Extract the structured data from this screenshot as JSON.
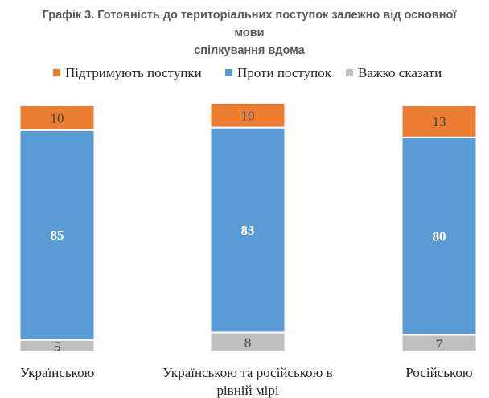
{
  "chart_data": {
    "type": "bar",
    "stacked": true,
    "title_line1": "Графік 3. Готовність до територіальних поступок залежно від основної мови",
    "title_line2": "спілкування вдома",
    "legend_position": "top",
    "categories": [
      [
        "Українською"
      ],
      [
        "Українською та російською в",
        "рівній мірі"
      ],
      [
        "Російською"
      ]
    ],
    "series": [
      {
        "name": "Важко сказати",
        "color": "#BFBFBF",
        "values": [
          5,
          8,
          7
        ],
        "label_color": "#404040",
        "bold": false
      },
      {
        "name": "Проти поступок",
        "color": "#5B9BD5",
        "values": [
          85,
          83,
          80
        ],
        "label_color": "#FFFFFF",
        "bold": true
      },
      {
        "name": "Підтримують поступки",
        "color": "#ED7D31",
        "values": [
          10,
          10,
          13
        ],
        "label_color": "#404040",
        "bold": false
      }
    ],
    "legend_order": [
      "Підтримують поступки",
      "Проти поступок",
      "Важко сказати"
    ],
    "ylim": [
      0,
      100
    ],
    "grid": false
  }
}
